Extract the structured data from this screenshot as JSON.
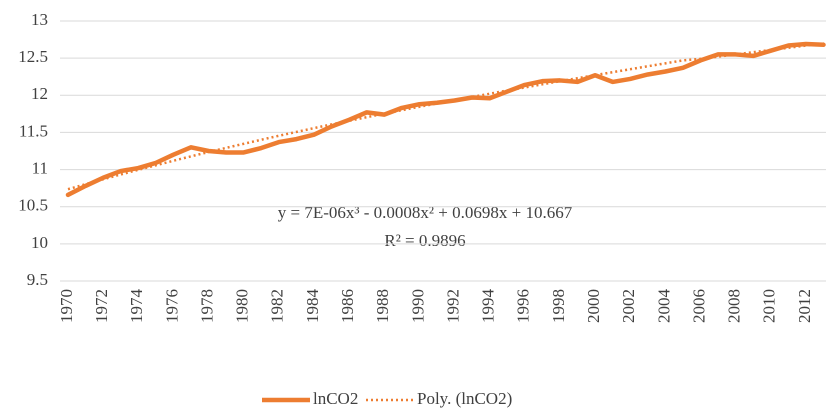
{
  "chart_data": {
    "type": "line",
    "categories": [
      "1970",
      null,
      "1972",
      null,
      "1974",
      null,
      "1976",
      null,
      "1978",
      null,
      "1980",
      null,
      "1982",
      null,
      "1984",
      null,
      "1986",
      null,
      "1988",
      null,
      "1990",
      null,
      "1992",
      null,
      "1994",
      null,
      "1996",
      null,
      "1998",
      null,
      "2000",
      null,
      "2002",
      null,
      "2004",
      null,
      "2006",
      null,
      "2008",
      null,
      "2010",
      null,
      "2012",
      null
    ],
    "series": [
      {
        "name": "lnCO2",
        "color": "#ed7d31",
        "style": "solid",
        "values": [
          10.66,
          10.78,
          10.89,
          10.98,
          11.02,
          11.09,
          11.2,
          11.3,
          11.25,
          11.23,
          11.23,
          11.29,
          11.37,
          11.41,
          11.47,
          11.58,
          11.67,
          11.77,
          11.74,
          11.83,
          11.88,
          11.9,
          11.93,
          11.97,
          11.96,
          12.05,
          12.14,
          12.19,
          12.2,
          12.18,
          12.27,
          12.18,
          12.22,
          12.28,
          12.32,
          12.37,
          12.47,
          12.55,
          12.55,
          12.53,
          12.6,
          12.67,
          12.69,
          12.68
        ]
      },
      {
        "name": "Poly. (lnCO2)",
        "color": "#ed7d31",
        "style": "dotted",
        "values": [
          10.736,
          10.803,
          10.869,
          10.934,
          10.997,
          11.058,
          11.119,
          11.178,
          11.236,
          11.292,
          11.347,
          11.402,
          11.455,
          11.507,
          11.558,
          11.608,
          11.657,
          11.705,
          11.752,
          11.799,
          11.845,
          11.89,
          11.934,
          11.978,
          12.021,
          12.064,
          12.106,
          12.148,
          12.189,
          12.23,
          12.271,
          12.311,
          12.351,
          12.391,
          12.43,
          12.47,
          12.49,
          12.52,
          12.55,
          12.58,
          12.61,
          12.64,
          12.67,
          12.7
        ]
      }
    ],
    "annotations": [
      "y = 7E-06x³ - 0.0008x² + 0.0698x + 10.667",
      "R² = 0.9896"
    ],
    "ylim": [
      9.5,
      13
    ],
    "yticks": [
      9.5,
      10,
      10.5,
      11,
      11.5,
      12,
      12.5,
      13
    ],
    "grid": true
  }
}
